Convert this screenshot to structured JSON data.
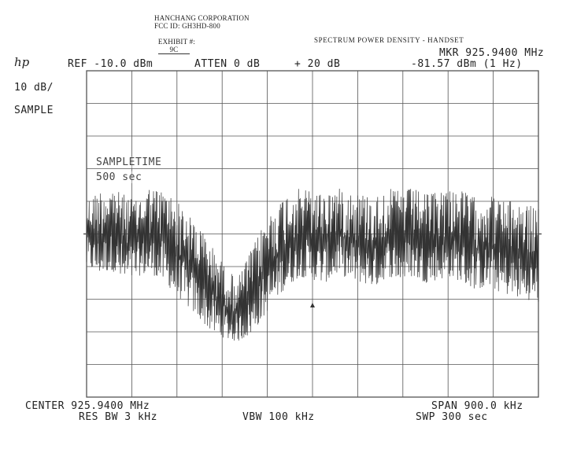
{
  "header": {
    "company": "HANCHANG CORPORATION",
    "fcc_id": "FCC ID: GH3HD-800",
    "exhibit_label": "EXHIBIT #:",
    "exhibit_value": "9C",
    "title": "SPECTRUM POWER DENSITY - HANDSET"
  },
  "instrument": {
    "logo": "hp",
    "ref": "REF -10.0 dBm",
    "atten": "ATTEN 0 dB",
    "offset": "+ 20 dB",
    "marker_freq": "MKR 925.9400 MHz",
    "marker_level": "-81.57 dBm (1 Hz)",
    "scale": "10 dB/",
    "detector": "SAMPLE",
    "overlay_line1": "SAMPLETIME",
    "overlay_line2": "500 sec",
    "center": "CENTER 925.9400 MHz",
    "span": "SPAN 900.0 kHz",
    "res_bw": "RES BW 3 kHz",
    "vbw": "VBW 100 kHz",
    "swp": "SWP 300 sec"
  },
  "colors": {
    "trace": "#333333",
    "grid": "#555555",
    "text": "#222222"
  },
  "chart_data": {
    "type": "line",
    "xlabel": "",
    "ylabel": "",
    "xlim": [
      925.49,
      926.39
    ],
    "ylim": [
      -110,
      -10
    ],
    "y_divisions": 10,
    "x_divisions": 10,
    "grid": true,
    "series": [
      {
        "x": [
          925.49,
          925.515,
          925.54,
          925.565,
          925.59,
          925.615,
          925.64,
          925.665,
          925.69,
          925.715,
          925.74,
          925.765,
          925.79,
          925.815,
          925.84,
          925.865,
          925.89,
          925.915,
          925.94,
          925.965,
          925.99,
          926.015,
          926.04,
          926.065,
          926.09,
          926.115,
          926.14,
          926.165,
          926.19,
          926.215,
          926.24,
          926.265,
          926.29,
          926.315,
          926.34,
          926.365,
          926.39
        ],
        "upper": [
          -50,
          -47,
          -46,
          -48,
          -50,
          -46,
          -47,
          -49,
          -54,
          -58,
          -64,
          -70,
          -74,
          -66,
          -58,
          -52,
          -48,
          -46,
          -47,
          -48,
          -46,
          -47,
          -48,
          -49,
          -46,
          -47,
          -46,
          -48,
          -47,
          -46,
          -47,
          -49,
          -48,
          -50,
          -50,
          -51,
          -52
        ],
        "lower": [
          -70,
          -72,
          -71,
          -75,
          -73,
          -72,
          -74,
          -78,
          -82,
          -86,
          -90,
          -92,
          -93,
          -91,
          -86,
          -80,
          -76,
          -73,
          -74,
          -75,
          -72,
          -74,
          -75,
          -76,
          -73,
          -74,
          -73,
          -75,
          -74,
          -73,
          -75,
          -77,
          -76,
          -78,
          -79,
          -80,
          -81
        ]
      }
    ]
  }
}
